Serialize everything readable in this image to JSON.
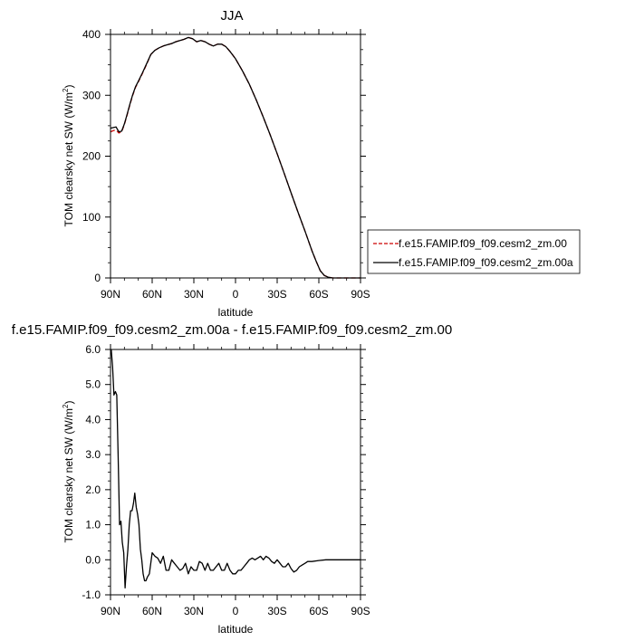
{
  "chart_data": [
    {
      "type": "line",
      "title": "JJA",
      "xlabel": "latitude",
      "ylabel": "TOM clearsky net SW (W/m",
      "ylabel_sup": "2",
      "ylabel_end": ")",
      "xlim": [
        90,
        -90
      ],
      "ylim": [
        0,
        400
      ],
      "xticks": [
        90,
        60,
        30,
        0,
        -30,
        -60,
        -90
      ],
      "xtick_labels": [
        "90N",
        "60N",
        "30N",
        "0",
        "30S",
        "60S",
        "90S"
      ],
      "yticks": [
        0,
        100,
        200,
        300,
        400
      ],
      "ytick_labels": [
        "0",
        "100",
        "200",
        "300",
        "400"
      ],
      "legend": "right",
      "series": [
        {
          "name": "f.e15.FAMIP.f09_f09.cesm2_zm.00",
          "color": "#cc0000",
          "dash": "dashed",
          "x": [
            90,
            88,
            86,
            84,
            82,
            80,
            78,
            76,
            74,
            72,
            70,
            67,
            64,
            61,
            58,
            55,
            52,
            49,
            46,
            43,
            40,
            37,
            34,
            31,
            28,
            25,
            22,
            19,
            16,
            13,
            10,
            7,
            4,
            0,
            -5,
            -10,
            -15,
            -20,
            -25,
            -30,
            -35,
            -40,
            -45,
            -50,
            -55,
            -58,
            -61,
            -64,
            -67,
            -70,
            -75,
            -80,
            -85,
            -90
          ],
          "y": [
            240,
            242,
            243,
            238,
            240,
            252,
            268,
            285,
            300,
            313,
            322,
            336,
            351,
            367,
            374,
            378,
            381,
            383,
            385,
            388,
            390,
            392,
            395,
            393,
            388,
            390,
            388,
            384,
            381,
            384,
            384,
            380,
            372,
            360,
            340,
            318,
            292,
            264,
            235,
            204,
            172,
            140,
            108,
            77,
            45,
            28,
            12,
            4,
            1,
            0,
            0,
            0,
            0,
            0
          ]
        },
        {
          "name": "f.e15.FAMIP.f09_f09.cesm2_zm.00a",
          "color": "#000000",
          "dash": "solid",
          "x": [
            90,
            88,
            86,
            84,
            82,
            80,
            78,
            76,
            74,
            72,
            70,
            67,
            64,
            61,
            58,
            55,
            52,
            49,
            46,
            43,
            40,
            37,
            34,
            31,
            28,
            25,
            22,
            19,
            16,
            13,
            10,
            7,
            4,
            0,
            -5,
            -10,
            -15,
            -20,
            -25,
            -30,
            -35,
            -40,
            -45,
            -50,
            -55,
            -58,
            -61,
            -64,
            -67,
            -70,
            -75,
            -80,
            -85,
            -90
          ],
          "y": [
            246,
            247,
            248,
            240,
            241,
            253,
            269,
            286,
            301,
            314,
            323,
            337,
            352,
            367,
            374,
            378,
            381,
            383,
            385,
            388,
            390,
            392,
            395,
            393,
            388,
            390,
            388,
            384,
            381,
            384,
            384,
            380,
            372,
            360,
            340,
            318,
            292,
            264,
            235,
            204,
            172,
            140,
            108,
            77,
            45,
            28,
            12,
            4,
            1,
            0,
            0,
            0,
            0,
            0
          ]
        }
      ]
    },
    {
      "type": "line",
      "title": "f.e15.FAMIP.f09_f09.cesm2_zm.00a - f.e15.FAMIP.f09_f09.cesm2_zm.00",
      "xlabel": "latitude",
      "ylabel": "TOM clearsky net SW (W/m",
      "ylabel_sup": "2",
      "ylabel_end": ")",
      "xlim": [
        90,
        -90
      ],
      "ylim": [
        -1,
        6
      ],
      "xticks": [
        90,
        60,
        30,
        0,
        -30,
        -60,
        -90
      ],
      "xtick_labels": [
        "90N",
        "60N",
        "30N",
        "0",
        "30S",
        "60S",
        "90S"
      ],
      "yticks": [
        -1,
        0,
        1,
        2,
        3,
        4,
        5,
        6
      ],
      "ytick_labels": [
        "-1.0",
        "0.0",
        "1.0",
        "2.0",
        "3.0",
        "4.0",
        "5.0",
        "6.0"
      ],
      "series": [
        {
          "color": "#000000",
          "dash": "solid",
          "x": [
            89.5,
            88.5,
            87.5,
            86.5,
            85.5,
            84.5,
            83.5,
            82.5,
            81.5,
            80.5,
            79.5,
            78.5,
            77.5,
            76.5,
            75.5,
            74.5,
            73.5,
            72.5,
            71.5,
            70.5,
            69.5,
            68.5,
            67.5,
            66.5,
            65.5,
            64.5,
            63.5,
            62,
            60,
            58,
            56,
            54,
            52,
            50,
            48,
            46,
            44,
            42,
            40,
            38,
            36,
            34,
            32,
            30,
            28,
            26,
            24,
            22,
            20,
            18,
            16,
            14,
            12,
            10,
            8,
            6,
            4,
            2,
            0,
            -2,
            -4,
            -6,
            -8,
            -10,
            -12,
            -14,
            -16,
            -18,
            -20,
            -22,
            -24,
            -26,
            -28,
            -30,
            -32,
            -34,
            -36,
            -38,
            -40,
            -42,
            -44,
            -46,
            -48,
            -50,
            -52,
            -55,
            -60,
            -65,
            -70,
            -75,
            -80,
            -85,
            -90
          ],
          "y": [
            6.0,
            5.5,
            4.7,
            4.8,
            4.7,
            3.0,
            1.0,
            1.1,
            0.5,
            0.2,
            -0.8,
            -0.2,
            0.3,
            1.0,
            1.4,
            1.4,
            1.6,
            1.9,
            1.5,
            1.3,
            1.0,
            0.3,
            0.0,
            -0.4,
            -0.6,
            -0.6,
            -0.5,
            -0.4,
            0.2,
            0.1,
            0.05,
            -0.1,
            0.1,
            -0.3,
            -0.3,
            0.0,
            -0.1,
            -0.2,
            -0.3,
            -0.25,
            -0.1,
            -0.4,
            -0.2,
            -0.3,
            -0.3,
            -0.05,
            -0.1,
            -0.3,
            -0.1,
            -0.3,
            -0.3,
            -0.2,
            -0.1,
            -0.3,
            -0.3,
            -0.1,
            -0.3,
            -0.4,
            -0.4,
            -0.3,
            -0.3,
            -0.2,
            -0.1,
            0.0,
            0.05,
            0.0,
            0.05,
            0.1,
            0.0,
            0.1,
            0.05,
            -0.05,
            -0.1,
            0.0,
            -0.1,
            -0.2,
            -0.2,
            -0.1,
            -0.25,
            -0.35,
            -0.3,
            -0.2,
            -0.15,
            -0.1,
            -0.05,
            -0.05,
            -0.02,
            0.0,
            0.0,
            0.0,
            0.0,
            0.0,
            0.0
          ]
        }
      ]
    }
  ]
}
